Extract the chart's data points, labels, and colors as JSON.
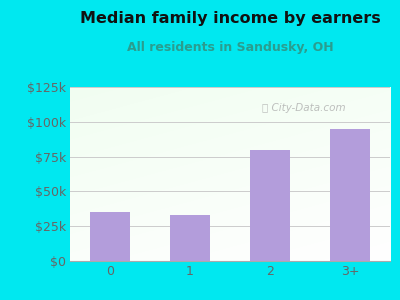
{
  "categories": [
    "0",
    "1",
    "2",
    "3+"
  ],
  "values": [
    35000,
    33000,
    80000,
    95000
  ],
  "bar_color": "#b39ddb",
  "title": "Median family income by earners",
  "subtitle": "All residents in Sandusky, OH",
  "title_color": "#111111",
  "subtitle_color": "#2a9d8f",
  "bg_color": "#00e8f0",
  "plot_bg_topleft": "#d4edda",
  "plot_bg_bottomright": "#ffffff",
  "ylim": [
    0,
    125000
  ],
  "yticks": [
    0,
    25000,
    50000,
    75000,
    100000,
    125000
  ],
  "ytick_labels": [
    "$0",
    "$25k",
    "$50k",
    "$75k",
    "$100k",
    "$125k"
  ],
  "watermark": "Ⓣ City-Data.com",
  "grid_color": "#cccccc",
  "tick_color": "#666666"
}
